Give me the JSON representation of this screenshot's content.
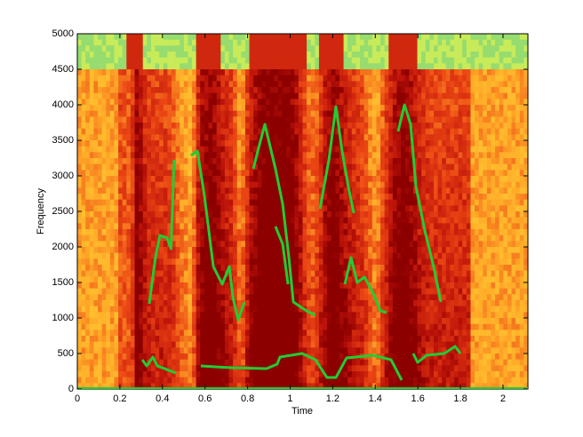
{
  "chart_data": {
    "type": "line",
    "x_label": "Time",
    "y_label": "Frequency",
    "xlim": [
      0,
      2.117
    ],
    "ylim": [
      0,
      5000
    ],
    "xticks": [
      0,
      0.2,
      0.4,
      0.6,
      0.8,
      1,
      1.2,
      1.4,
      1.6,
      1.8,
      2
    ],
    "yticks": [
      0,
      500,
      1000,
      1500,
      2000,
      2500,
      3000,
      3500,
      4000,
      4500,
      5000
    ],
    "series": [
      {
        "color": "#22cc33",
        "x": [
          0.305,
          0.326,
          0.355,
          0.376,
          0.409,
          0.463,
          null,
          0.58,
          0.722,
          0.889,
          0.939,
          0.952,
          1.056,
          1.119,
          1.173,
          1.215,
          1.265,
          1.39,
          1.474,
          1.524,
          null,
          1.578,
          1.599,
          1.641,
          1.724,
          1.775,
          1.8
        ],
        "values": [
          412,
          325,
          450,
          325,
          288,
          225,
          null,
          325,
          300,
          288,
          350,
          450,
          500,
          412,
          162,
          162,
          438,
          475,
          412,
          125,
          null,
          500,
          375,
          475,
          500,
          600,
          500
        ]
      },
      {
        "color": "#22cc33",
        "x": [
          0.338,
          0.367,
          0.388,
          0.422,
          0.44,
          0.455
        ],
        "values": [
          1200,
          1850,
          2162,
          2125,
          1975,
          3225
        ]
      },
      {
        "color": "#22cc33",
        "x": [
          0.534,
          0.564,
          0.597,
          0.639,
          0.681,
          0.714,
          0.731,
          0.756,
          0.785
        ],
        "values": [
          3288,
          3350,
          2725,
          1725,
          1475,
          1725,
          1288,
          975,
          1225
        ]
      },
      {
        "color": "#22cc33",
        "x": [
          0.827,
          0.848,
          0.881,
          0.931,
          0.965,
          0.994,
          1.015,
          1.077,
          1.119
        ],
        "values": [
          3100,
          3350,
          3725,
          3100,
          2600,
          1850,
          1225,
          1100,
          1038
        ]
      },
      {
        "color": "#22cc33",
        "x": [
          0.931,
          0.965,
          0.99
        ],
        "values": [
          2288,
          2038,
          1475
        ]
      },
      {
        "color": "#22cc33",
        "x": [
          1.14,
          1.182,
          1.215,
          1.244,
          1.273,
          1.299
        ],
        "values": [
          2538,
          3225,
          3975,
          3350,
          2850,
          2475
        ]
      },
      {
        "color": "#22cc33",
        "x": [
          1.257,
          1.286,
          1.315,
          1.349,
          1.39,
          1.424,
          1.453
        ],
        "values": [
          1475,
          1850,
          1500,
          1575,
          1350,
          1100,
          1075
        ]
      },
      {
        "color": "#22cc33",
        "x": [
          1.507,
          1.537,
          1.566,
          1.591,
          1.633,
          1.674,
          1.708
        ],
        "values": [
          3625,
          4000,
          3725,
          2850,
          2225,
          1725,
          1225
        ]
      }
    ]
  }
}
